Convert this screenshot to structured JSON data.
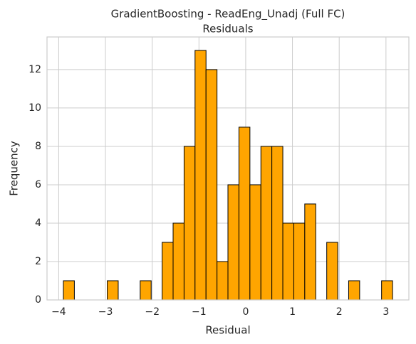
{
  "chart_data": {
    "type": "histogram",
    "title": [
      "GradientBoosting - ReadEng_Unadj (Full FC)",
      "Residuals"
    ],
    "xlabel": "Residual",
    "ylabel": "Frequency",
    "bins": [
      -3.9,
      -3.665,
      -3.431,
      -3.196,
      -2.961,
      -2.727,
      -2.492,
      -2.257,
      -2.022,
      -1.788,
      -1.553,
      -1.318,
      -1.084,
      -0.849,
      -0.614,
      -0.38,
      -0.145,
      0.09,
      0.325,
      0.559,
      0.794,
      1.029,
      1.263,
      1.498,
      1.733,
      1.968,
      2.202,
      2.437,
      2.672,
      2.906,
      3.141
    ],
    "values": [
      1,
      0,
      0,
      0,
      1,
      0,
      0,
      1,
      0,
      3,
      4,
      8,
      13,
      12,
      2,
      6,
      9,
      6,
      8,
      8,
      4,
      4,
      5,
      0,
      3,
      0,
      1,
      0,
      0,
      1
    ],
    "color": "#ffa500",
    "edgecolor": "#000000",
    "xlim": [
      -4.25,
      3.49
    ],
    "ylim": [
      0,
      13.7
    ],
    "xticks": [
      {
        "value": -4,
        "label": "−4"
      },
      {
        "value": -3,
        "label": "−3"
      },
      {
        "value": -2,
        "label": "−2"
      },
      {
        "value": -1,
        "label": "−1"
      },
      0,
      1,
      2,
      3
    ],
    "yticks": [
      0,
      2,
      4,
      6,
      8,
      10,
      12
    ],
    "grid": true
  }
}
